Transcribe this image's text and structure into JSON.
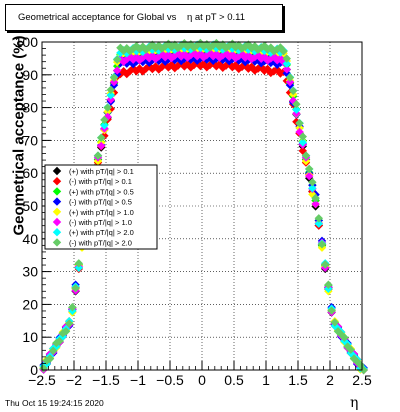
{
  "title": "Geometrical acceptance for Global vs    η at pT > 0.11",
  "footer": "Thu Oct 15 19:24:15 2020",
  "chart_data": {
    "type": "scatter",
    "xlabel": "η",
    "ylabel": "Geometrical acceptance (%)",
    "xlim": [
      -2.5,
      2.5
    ],
    "ylim": [
      0,
      100
    ],
    "xticks": [
      "−2.5",
      "−2",
      "−1.5",
      "−1",
      "−0.5",
      "0",
      "0.5",
      "1",
      "1.5",
      "2",
      "2.5"
    ],
    "yticks": [
      "0",
      "10",
      "20",
      "30",
      "40",
      "50",
      "60",
      "70",
      "80",
      "90",
      "100"
    ],
    "legend_position": "left-middle",
    "grid": true,
    "series": [
      {
        "name": "(+) with pT/|q| > 0.1",
        "color": "#000000",
        "marker": "diamond",
        "plateau": 96
      },
      {
        "name": "(-) with pT/|q| > 0.1",
        "color": "#ff0000",
        "marker": "diamond",
        "plateau": 93
      },
      {
        "name": "(+) with pT/|q| > 0.5",
        "color": "#00ff00",
        "marker": "diamond",
        "plateau": 97
      },
      {
        "name": "(-) with pT/|q| > 0.5",
        "color": "#0000ff",
        "marker": "diamond",
        "plateau": 95
      },
      {
        "name": "(+) with pT/|q| > 1.0",
        "color": "#ffff00",
        "marker": "diamond",
        "plateau": 98
      },
      {
        "name": "(-) with pT/|q| > 1.0",
        "color": "#ff00ff",
        "marker": "diamond",
        "plateau": 96
      },
      {
        "name": "(+) with pT/|q| > 2.0",
        "color": "#00ffff",
        "marker": "diamond",
        "plateau": 98.5
      },
      {
        "name": "(-) with pT/|q| > 2.0",
        "color": "#66cc66",
        "marker": "diamond",
        "plateau": 99
      }
    ]
  }
}
